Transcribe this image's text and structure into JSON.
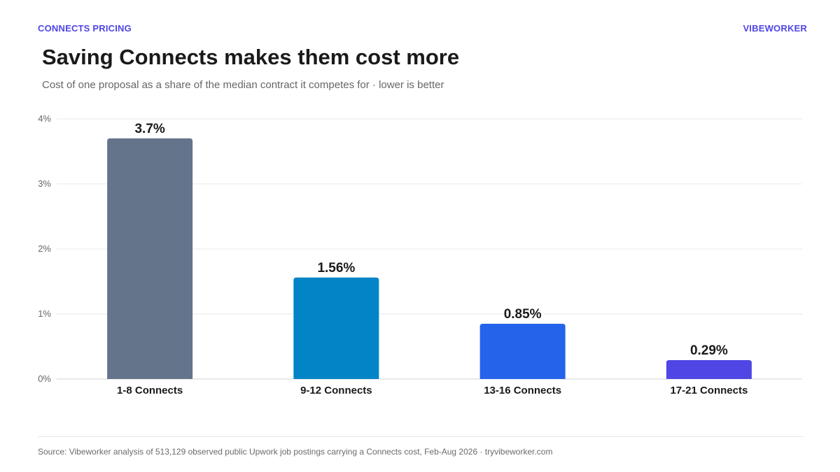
{
  "header": {
    "eyebrow_left": "CONNECTS PRICING",
    "eyebrow_right": "VIBEWORKER"
  },
  "footer": {
    "source": "Source: Vibeworker analysis of 513,129 observed public Upwork job postings carrying a Connects cost, Feb-Aug 2026 · tryvibeworker.com"
  },
  "chart_data": {
    "type": "bar",
    "title": "Saving Connects makes them cost more",
    "subtitle": "Cost of one proposal as a share of the median contract it competes for · lower is better",
    "xlabel": "",
    "ylabel": "",
    "categories": [
      "1-8 Connects",
      "9-12 Connects",
      "13-16 Connects",
      "17-21 Connects"
    ],
    "values": [
      3.7,
      1.56,
      0.85,
      0.29
    ],
    "value_labels": [
      "3.7%",
      "1.56%",
      "0.85%",
      "0.29%"
    ],
    "bar_colors": [
      "#64748b",
      "#0284c7",
      "#2563eb",
      "#4f46e5"
    ],
    "ylim": [
      0,
      4
    ],
    "yticks": [
      0,
      1,
      2,
      3,
      4
    ],
    "ytick_labels": [
      "0%",
      "1%",
      "2%",
      "3%",
      "4%"
    ],
    "grid": true,
    "legend": "none"
  }
}
